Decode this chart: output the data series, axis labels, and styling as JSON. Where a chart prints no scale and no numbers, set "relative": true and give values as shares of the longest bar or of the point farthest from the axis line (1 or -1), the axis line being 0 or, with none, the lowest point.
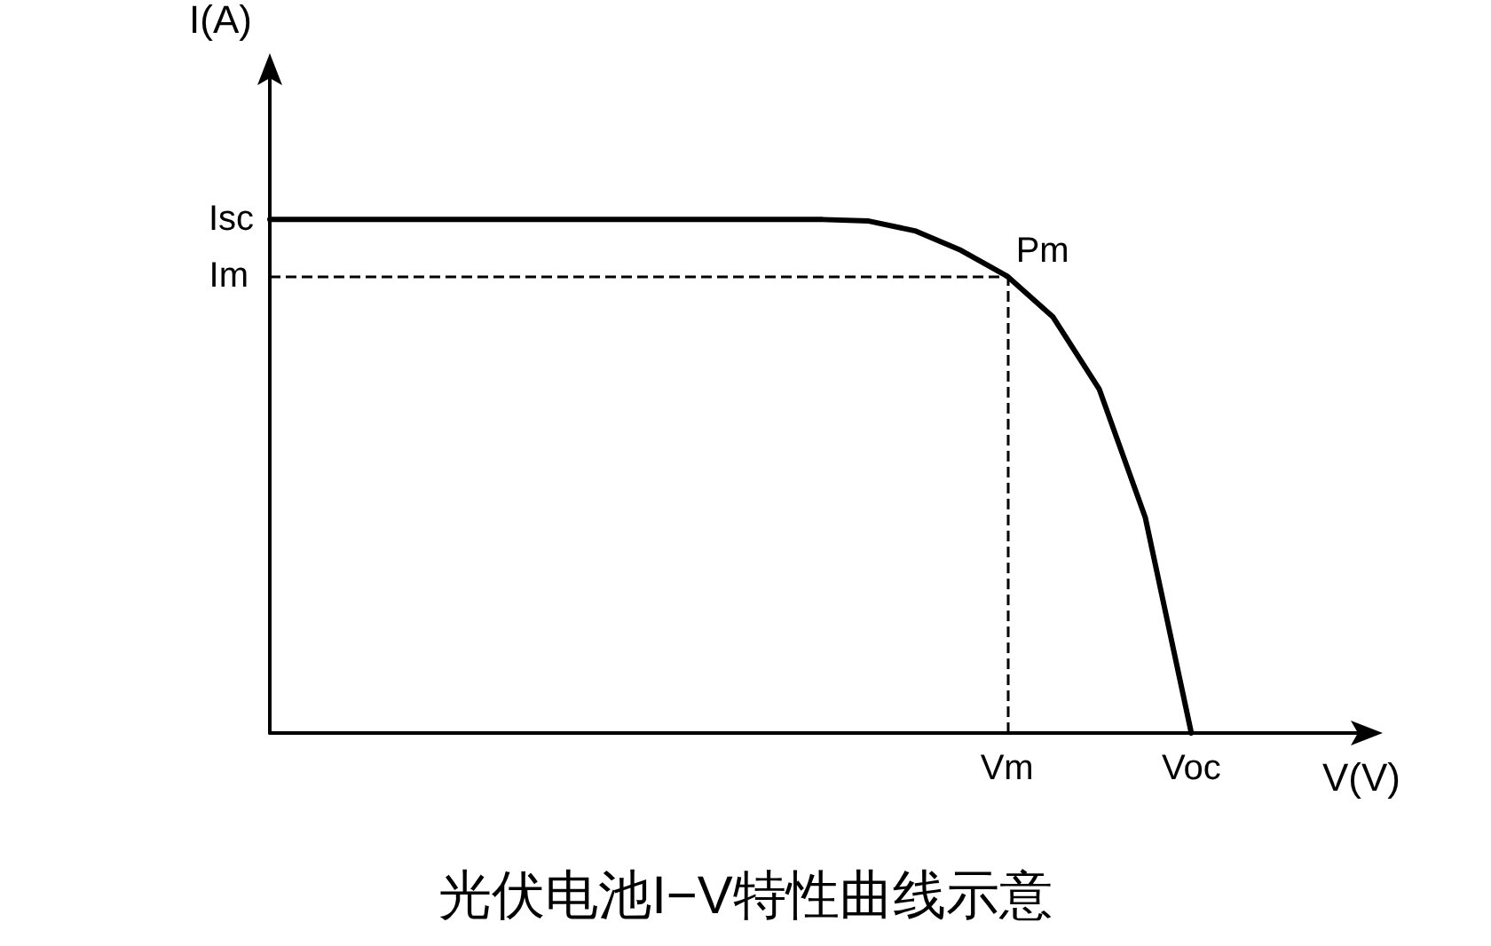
{
  "chart_data": {
    "type": "line",
    "relative": true,
    "title": "光伏电池I−V特性曲线示意",
    "xlabel": "V(V)",
    "ylabel": "I(A)",
    "categories": [
      null,
      null,
      null,
      null,
      null,
      null,
      null,
      null,
      null,
      null,
      null,
      null,
      null,
      null,
      null,
      null,
      "Vm",
      null,
      null,
      null,
      "Voc",
      null,
      null,
      null,
      null
    ],
    "values": [
      1,
      1,
      1,
      1,
      1,
      1,
      1,
      1,
      1,
      1,
      1,
      1,
      1,
      0.997,
      0.978,
      0.94,
      0.89,
      0.81,
      0.67,
      0.42,
      0,
      null,
      null,
      null,
      null
    ],
    "color": "#000000",
    "marker": "none",
    "line_style": "solid",
    "grid": false,
    "ref_lines": [
      {
        "axis": "y",
        "value": 0.89,
        "label": "Im",
        "line_style": "dashed",
        "color": "#000000"
      },
      {
        "axis": "x",
        "value": "Vm",
        "line_style": "dashed",
        "color": "#000000"
      }
    ],
    "annotations": [
      "Isc",
      "Pm"
    ]
  }
}
